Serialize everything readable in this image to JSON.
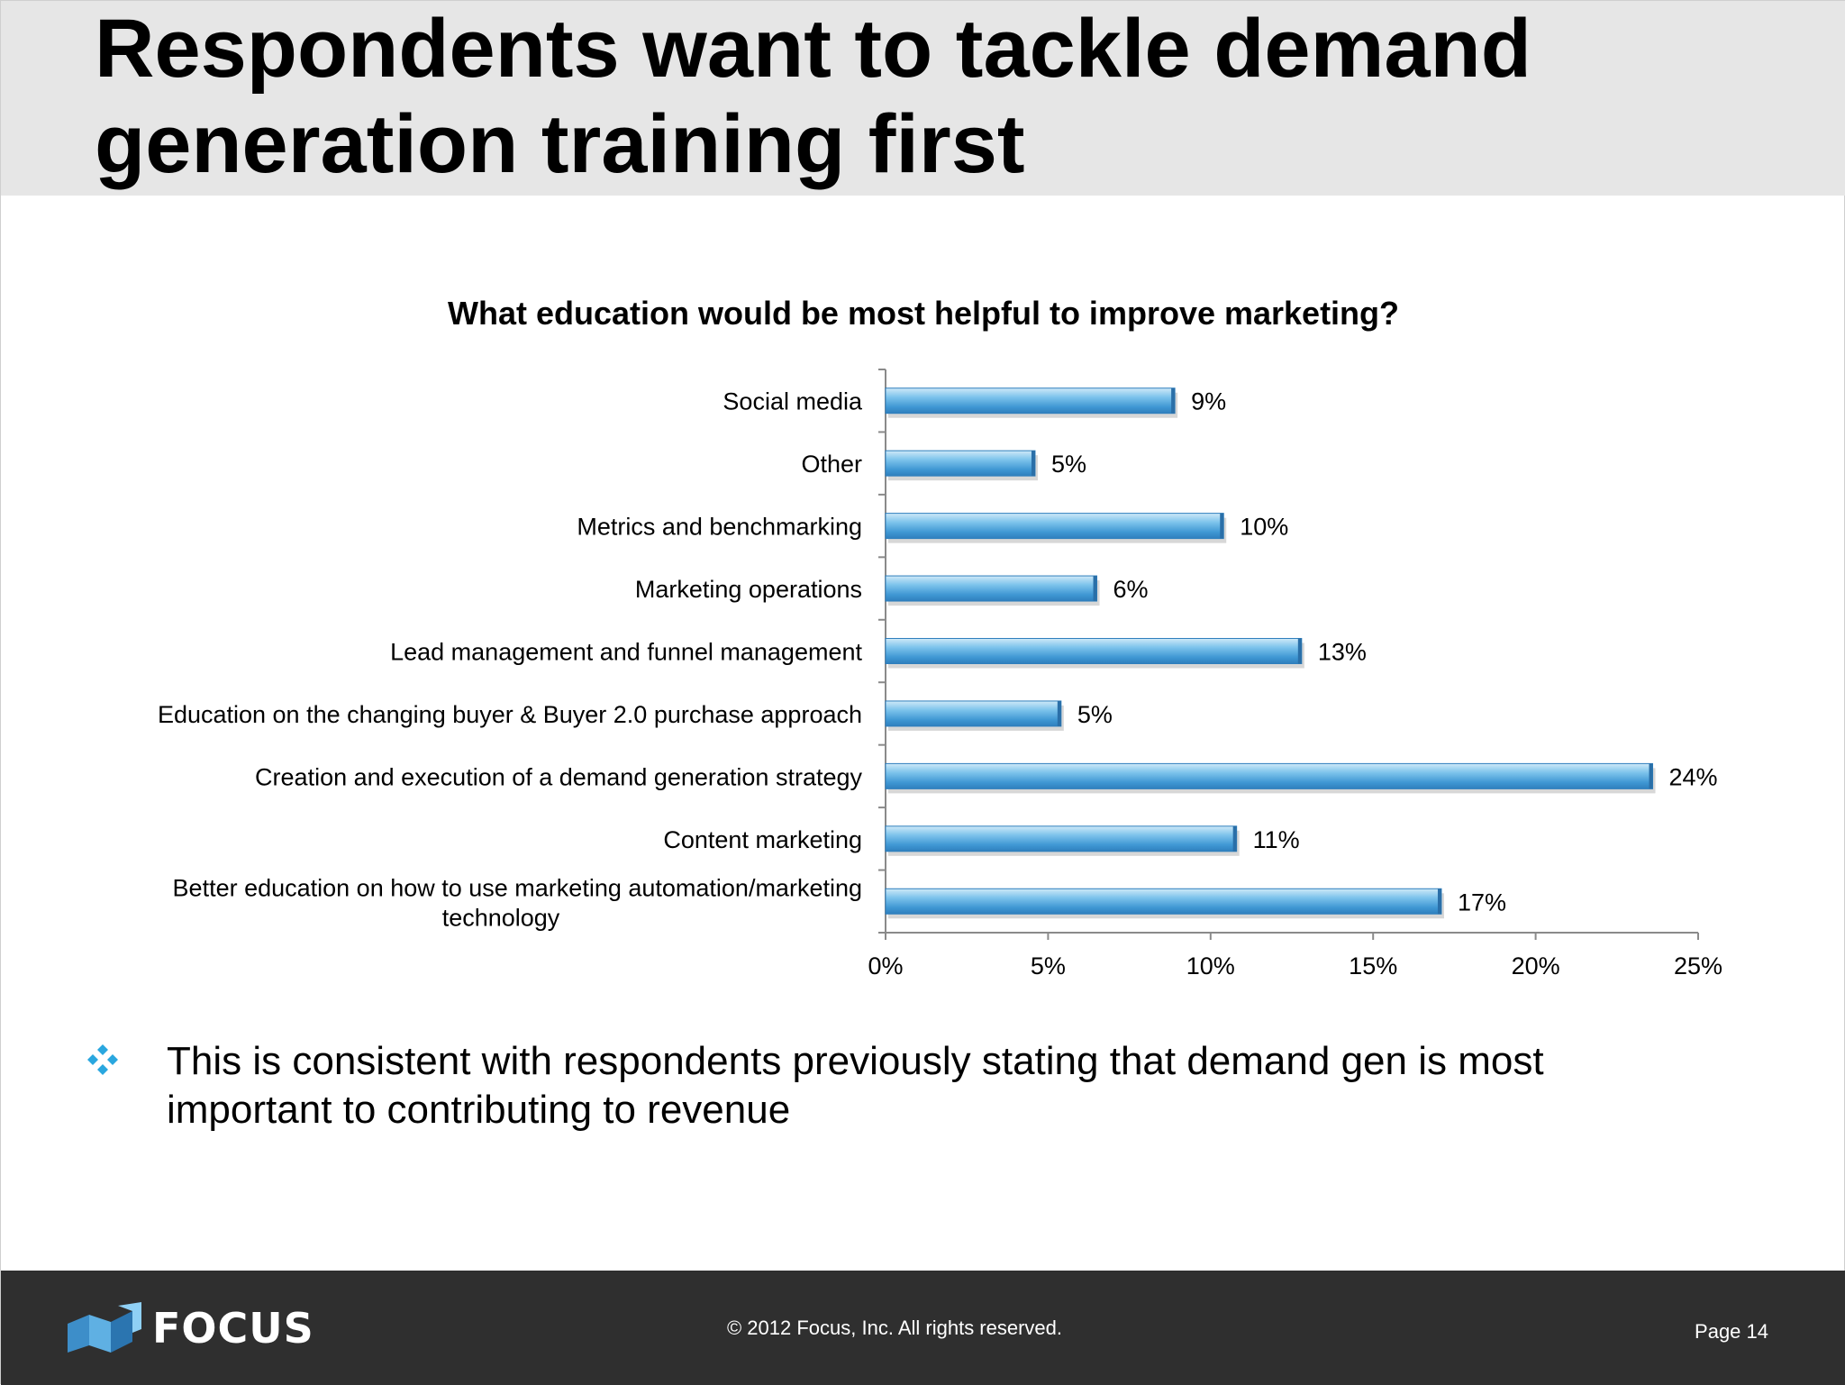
{
  "slide": {
    "title_lines": [
      "Respondents want to tackle demand",
      "generation training first"
    ]
  },
  "bullet": {
    "text": "This is consistent with respondents previously stating that demand gen is most important to contributing to revenue",
    "icon": "four-diamonds-bullet-icon"
  },
  "footer": {
    "logo_text": "FOCUS",
    "copyright": "© 2012 Focus, Inc. All rights reserved.",
    "page": "Page 14"
  },
  "colors": {
    "bar": "#4aa3dc",
    "header_band": "#e6e6e6",
    "footer": "#2f2f2f",
    "bullet": "#2aa7df"
  },
  "chart_data": {
    "type": "bar",
    "orientation": "horizontal",
    "title": "What education would be most helpful to improve marketing?",
    "categories": [
      "Social media",
      "Other",
      "Metrics and benchmarking",
      "Marketing operations",
      "Lead management and funnel management",
      "Education on the changing buyer & Buyer 2.0 purchase approach",
      "Creation and execution of a demand generation strategy",
      "Content marketing",
      "Better education on how to use marketing automation/marketing technology"
    ],
    "category_label_lines": [
      [
        "Social media"
      ],
      [
        "Other"
      ],
      [
        "Metrics and benchmarking"
      ],
      [
        "Marketing operations"
      ],
      [
        "Lead management and funnel management"
      ],
      [
        "Education on the changing buyer & Buyer 2.0 purchase approach"
      ],
      [
        "Creation and execution of a demand generation strategy"
      ],
      [
        "Content marketing"
      ],
      [
        "Better education on how to use marketing automation/marketing",
        "technology"
      ]
    ],
    "values": [
      8.9,
      4.6,
      10.4,
      6.5,
      12.8,
      5.4,
      23.6,
      10.8,
      17.1
    ],
    "value_labels": [
      "9%",
      "5%",
      "10%",
      "6%",
      "13%",
      "5%",
      "24%",
      "11%",
      "17%"
    ],
    "xlim": [
      0,
      25
    ],
    "x_ticks": [
      0,
      5,
      10,
      15,
      20,
      25
    ],
    "x_tick_labels": [
      "0%",
      "5%",
      "10%",
      "15%",
      "20%",
      "25%"
    ],
    "xlabel": "",
    "ylabel": "",
    "grid": false,
    "legend": "none"
  }
}
